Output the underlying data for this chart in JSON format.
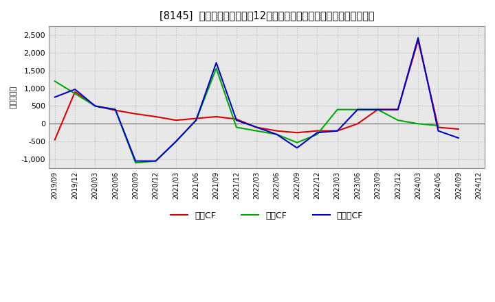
{
  "title": "[8145]  キャッシュフローの12か月移動合計の対前年同期増減額の推移",
  "ylabel": "（百万円）",
  "x_labels": [
    "2019/09",
    "2019/12",
    "2020/03",
    "2020/06",
    "2020/09",
    "2020/12",
    "2021/03",
    "2021/06",
    "2021/09",
    "2021/12",
    "2022/03",
    "2022/06",
    "2022/09",
    "2022/12",
    "2023/03",
    "2023/06",
    "2023/09",
    "2023/12",
    "2024/03",
    "2024/06",
    "2024/09",
    "2024/12"
  ],
  "営業CF": [
    -450,
    900,
    500,
    380,
    280,
    200,
    100,
    150,
    200,
    130,
    -100,
    -200,
    -250,
    -200,
    -200,
    0,
    400,
    400,
    2350,
    -100,
    -150,
    null
  ],
  "投賃CF": [
    1200,
    850,
    500,
    400,
    -1100,
    -1050,
    -500,
    100,
    1560,
    -100,
    -200,
    -300,
    -530,
    -300,
    400,
    400,
    400,
    100,
    0,
    -50,
    null,
    null
  ],
  "フリーCF": [
    750,
    970,
    500,
    400,
    -1050,
    -1050,
    -500,
    100,
    1720,
    100,
    -100,
    -300,
    -680,
    -250,
    -200,
    400,
    400,
    400,
    2420,
    -200,
    -400,
    null
  ],
  "line_colors": {
    "営業CF": "#dd0000",
    "投賃CF": "#00aa00",
    "フリーCF": "#0000cc"
  },
  "legend_labels": [
    "営業CF",
    "投賃CF",
    "フリーCF"
  ],
  "legend_display": [
    "営業CF",
    "投賃CF",
    "フリーCF"
  ],
  "ylim": [
    -1250,
    2750
  ],
  "yticks": [
    -1000,
    -500,
    0,
    500,
    1000,
    1500,
    2000,
    2500
  ],
  "bg_color": "#ffffff",
  "plot_bg_color": "#e8e8e8",
  "grid_color": "#bbbbbb",
  "title_fontsize": 10.5
}
